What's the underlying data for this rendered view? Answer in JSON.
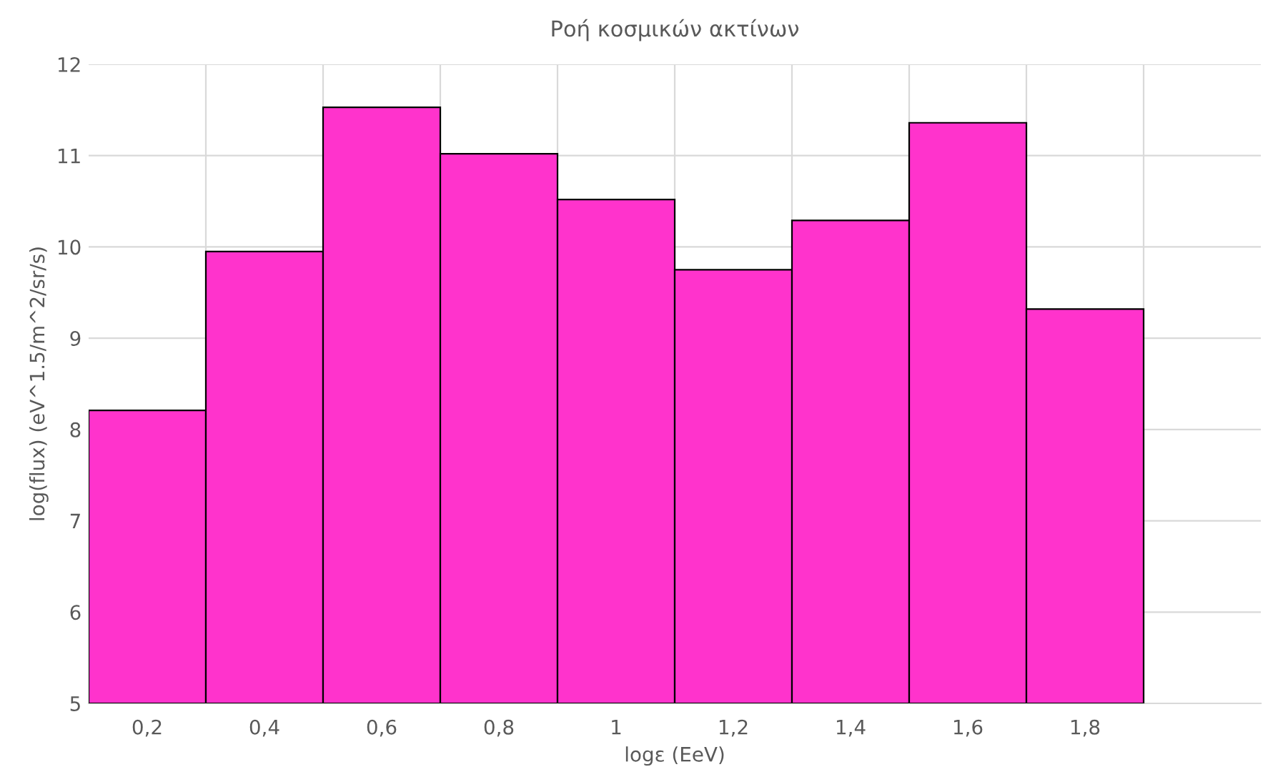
{
  "chart_data": {
    "type": "bar",
    "title": "Ροή κοσμικών ακτίνων",
    "xlabel": "logε (EeV)",
    "ylabel": "log(flux) (eV^1.5/m^2/sr/s)",
    "categories": [
      "0,2",
      "0,4",
      "0,6",
      "0,8",
      "1",
      "1,2",
      "1,4",
      "1,6",
      "1,8",
      null
    ],
    "values": [
      8.21,
      9.95,
      11.53,
      11.02,
      10.52,
      9.75,
      10.29,
      11.36,
      9.32,
      null
    ],
    "color": "#ff33cc",
    "ylim": [
      5,
      12
    ],
    "yticks": [
      5,
      6,
      7,
      8,
      9,
      10,
      11,
      12
    ],
    "grid": true
  }
}
